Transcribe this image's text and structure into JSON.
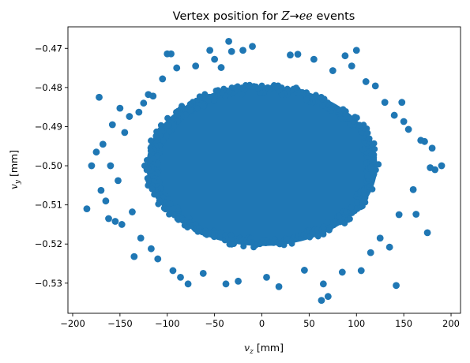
{
  "chart_data": {
    "type": "scatter",
    "title": {
      "prefix": "Vertex position for ",
      "math_z": "Z",
      "arrow": "→",
      "math_ee": "ee",
      "suffix": " events"
    },
    "xlabel": {
      "var": "v",
      "sub": "z",
      "unit": " [mm]"
    },
    "ylabel": {
      "var": "v",
      "sub": "y",
      "unit": " [mm]"
    },
    "xlim": [
      -205,
      210
    ],
    "ylim": [
      -0.5377,
      -0.4645
    ],
    "xticks": [
      -200,
      -150,
      -100,
      -50,
      0,
      50,
      100,
      150,
      200
    ],
    "xtick_labels": [
      "−200",
      "−150",
      "−100",
      "−50",
      "0",
      "50",
      "100",
      "150",
      "200"
    ],
    "yticks": [
      -0.47,
      -0.48,
      -0.49,
      -0.5,
      -0.51,
      -0.52,
      -0.53
    ],
    "ytick_labels": [
      "−0.47",
      "−0.48",
      "−0.49",
      "−0.50",
      "−0.51",
      "−0.52",
      "−0.53"
    ],
    "grid": false,
    "legend": "none",
    "marker_color": "#1f77b4",
    "core": {
      "center": [
        0,
        -0.5
      ],
      "rx": 122,
      "ry": 0.0205
    },
    "outliers": [
      [
        -185,
        -0.511
      ],
      [
        -180,
        -0.5
      ],
      [
        -175,
        -0.4965
      ],
      [
        -172,
        -0.4825
      ],
      [
        -170,
        -0.5063
      ],
      [
        -168,
        -0.4945
      ],
      [
        -165,
        -0.509
      ],
      [
        -162,
        -0.5135
      ],
      [
        -160,
        -0.5
      ],
      [
        -158,
        -0.4895
      ],
      [
        -155,
        -0.5142
      ],
      [
        -152,
        -0.5038
      ],
      [
        -150,
        -0.4853
      ],
      [
        -148,
        -0.515
      ],
      [
        -145,
        -0.4915
      ],
      [
        -140,
        -0.4874
      ],
      [
        -137,
        -0.5118
      ],
      [
        -135,
        -0.5232
      ],
      [
        -130,
        -0.4863
      ],
      [
        -128,
        -0.5185
      ],
      [
        -125,
        -0.484
      ],
      [
        -120,
        -0.4818
      ],
      [
        -117,
        -0.5212
      ],
      [
        -115,
        -0.4822
      ],
      [
        -110,
        -0.5238
      ],
      [
        -105,
        -0.4778
      ],
      [
        -100,
        -0.4714
      ],
      [
        -96,
        -0.4714
      ],
      [
        -94,
        -0.5268
      ],
      [
        -90,
        -0.475
      ],
      [
        -86,
        -0.5285
      ],
      [
        -78,
        -0.5302
      ],
      [
        -70,
        -0.4745
      ],
      [
        -62,
        -0.5275
      ],
      [
        -55,
        -0.4705
      ],
      [
        -50,
        -0.4728
      ],
      [
        -43,
        -0.4749
      ],
      [
        -38,
        -0.5302
      ],
      [
        -35,
        -0.4682
      ],
      [
        -32,
        -0.4708
      ],
      [
        -25,
        -0.5295
      ],
      [
        -20,
        -0.4705
      ],
      [
        -10,
        -0.4695
      ],
      [
        5,
        -0.5285
      ],
      [
        18,
        -0.5309
      ],
      [
        30,
        -0.4717
      ],
      [
        38,
        -0.4715
      ],
      [
        45,
        -0.5267
      ],
      [
        55,
        -0.4728
      ],
      [
        63,
        -0.5344
      ],
      [
        65,
        -0.5302
      ],
      [
        70,
        -0.5334
      ],
      [
        75,
        -0.4757
      ],
      [
        85,
        -0.5272
      ],
      [
        88,
        -0.4719
      ],
      [
        95,
        -0.4745
      ],
      [
        100,
        -0.4705
      ],
      [
        105,
        -0.5268
      ],
      [
        110,
        -0.4785
      ],
      [
        115,
        -0.5222
      ],
      [
        120,
        -0.4796
      ],
      [
        125,
        -0.5185
      ],
      [
        130,
        -0.4838
      ],
      [
        135,
        -0.5208
      ],
      [
        140,
        -0.4871
      ],
      [
        142,
        -0.5306
      ],
      [
        145,
        -0.5125
      ],
      [
        148,
        -0.4838
      ],
      [
        150,
        -0.4887
      ],
      [
        155,
        -0.4907
      ],
      [
        160,
        -0.5061
      ],
      [
        163,
        -0.5124
      ],
      [
        168,
        -0.4935
      ],
      [
        172,
        -0.4938
      ],
      [
        175,
        -0.5171
      ],
      [
        178,
        -0.5005
      ],
      [
        180,
        -0.4955
      ],
      [
        183,
        -0.501
      ],
      [
        190,
        -0.5
      ]
    ]
  }
}
